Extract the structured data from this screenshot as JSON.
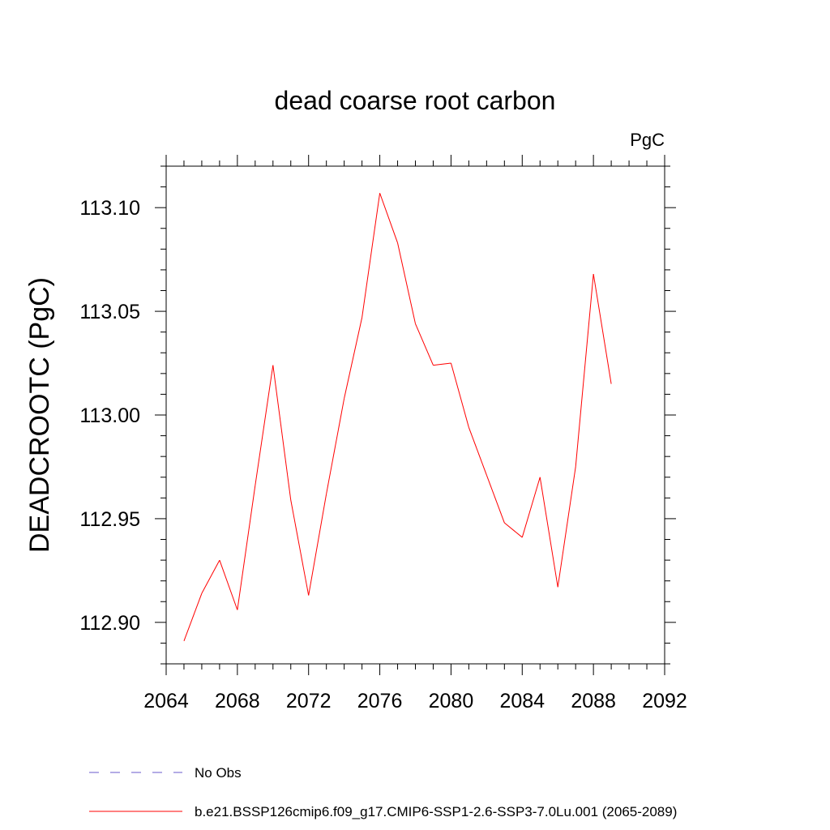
{
  "chart_data": {
    "type": "line",
    "title": "dead coarse root carbon",
    "units": "PgC",
    "ylabel": "DEADCROOTC  (PgC)",
    "xlabel": "",
    "xlim": [
      2064,
      2092
    ],
    "ylim": [
      112.88,
      113.12
    ],
    "x_ticks": [
      "2064",
      "2068",
      "2072",
      "2076",
      "2080",
      "2084",
      "2088",
      "2092"
    ],
    "y_ticks": [
      "112.90",
      "112.95",
      "113.00",
      "113.05",
      "113.10"
    ],
    "grid": false,
    "series": [
      {
        "name": "b.e21.BSSP126cmip6.f09_g17.CMIP6-SSP1-2.6-SSP3-7.0Lu.001 (2065-2089)",
        "color": "#ff0000",
        "x": [
          2065,
          2066,
          2067,
          2068,
          2069,
          2070,
          2071,
          2072,
          2073,
          2074,
          2075,
          2076,
          2077,
          2078,
          2079,
          2080,
          2081,
          2082,
          2083,
          2084,
          2085,
          2086,
          2087,
          2088,
          2089
        ],
        "y": [
          112.891,
          112.914,
          112.93,
          112.906,
          112.966,
          113.024,
          112.959,
          112.913,
          112.962,
          113.008,
          113.047,
          113.107,
          113.083,
          113.044,
          113.024,
          113.025,
          112.994,
          112.971,
          112.948,
          112.941,
          112.97,
          112.917,
          112.975,
          113.068,
          113.015
        ]
      }
    ],
    "legend": {
      "placement": "bottom",
      "entries": [
        {
          "label": "No Obs",
          "style": "dashed",
          "color": "#6a5acd"
        },
        {
          "label": "b.e21.BSSP126cmip6.f09_g17.CMIP6-SSP1-2.6-SSP3-7.0Lu.001 (2065-2089)",
          "style": "solid",
          "color": "#ff0000"
        }
      ]
    }
  }
}
